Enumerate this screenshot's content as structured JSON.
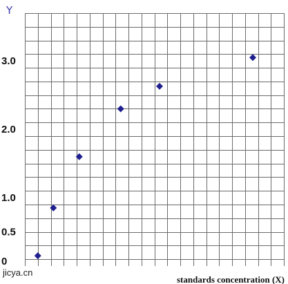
{
  "chart_data": {
    "type": "scatter",
    "title": "",
    "xlabel": "standards concentration (X)",
    "ylabel": "Y",
    "xlim": [
      0,
      20
    ],
    "ylim": [
      0,
      3.7
    ],
    "grid": true,
    "y_ticks": [
      {
        "value": 0,
        "label": "0"
      },
      {
        "value": 0.5,
        "label": "0.5"
      },
      {
        "value": 1.0,
        "label": "1.0"
      },
      {
        "value": 2.0,
        "label": "2.0"
      },
      {
        "value": 3.0,
        "label": "3.0"
      }
    ],
    "series": [
      {
        "color": "#1f1f8f",
        "marker": "diamond",
        "points": [
          {
            "x": 1,
            "y": 0.15
          },
          {
            "x": 2.2,
            "y": 0.85
          },
          {
            "x": 4.2,
            "y": 1.6
          },
          {
            "x": 7.4,
            "y": 2.3
          },
          {
            "x": 10.4,
            "y": 2.63
          },
          {
            "x": 17.6,
            "y": 3.05
          }
        ]
      }
    ]
  },
  "watermark": "jicya.cn"
}
